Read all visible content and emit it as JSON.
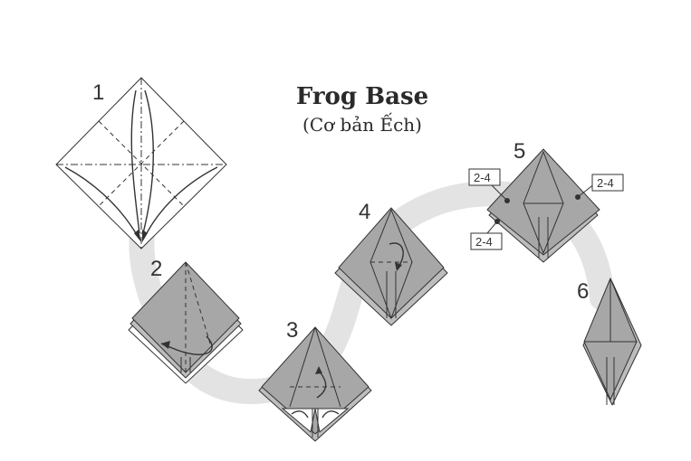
{
  "title": "Frog Base",
  "subtitle": "(Cơ bản Ếch)",
  "steps": [
    {
      "number": "1"
    },
    {
      "number": "2"
    },
    {
      "number": "3"
    },
    {
      "number": "4"
    },
    {
      "number": "5"
    },
    {
      "number": "6"
    }
  ],
  "repeat_tags": [
    "2-4",
    "2-4",
    "2-4"
  ],
  "colors": {
    "path_band": "#e3e3e3",
    "paper_gray": "#a7a7a7",
    "paper_white": "#ffffff",
    "line": "#333333"
  }
}
